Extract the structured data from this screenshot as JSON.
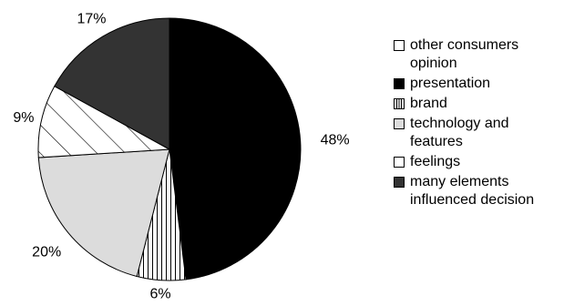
{
  "chart_data": {
    "type": "pie",
    "slices": [
      {
        "label": "other consumers opinion",
        "value": 0,
        "color": "#ffffff",
        "pattern": "none"
      },
      {
        "label": "presentation",
        "value": 48,
        "color": "#000000",
        "pattern": "solid"
      },
      {
        "label": "brand",
        "value": 6,
        "color": "#ffffff",
        "pattern": "vertical-lines"
      },
      {
        "label": "technology and features",
        "value": 20,
        "color": "#dcdcdc",
        "pattern": "solid"
      },
      {
        "label": "feelings",
        "value": 9,
        "color": "#ffffff",
        "pattern": "diagonal-lines"
      },
      {
        "label": "many elements influenced decision",
        "value": 17,
        "color": "#333333",
        "pattern": "solid"
      }
    ],
    "data_labels": [
      "48%",
      "6%",
      "20%",
      "9%",
      "17%"
    ],
    "legend_placement": "right",
    "start_angle": "12 o'clock",
    "direction": "clockwise"
  },
  "legend": {
    "items": [
      {
        "label_lines": [
          "other consumers",
          "opinion"
        ]
      },
      {
        "label_lines": [
          "presentation"
        ]
      },
      {
        "label_lines": [
          "brand"
        ]
      },
      {
        "label_lines": [
          "technology and",
          "features"
        ]
      },
      {
        "label_lines": [
          "feelings"
        ]
      },
      {
        "label_lines": [
          "many elements",
          "influenced decision"
        ]
      }
    ]
  }
}
